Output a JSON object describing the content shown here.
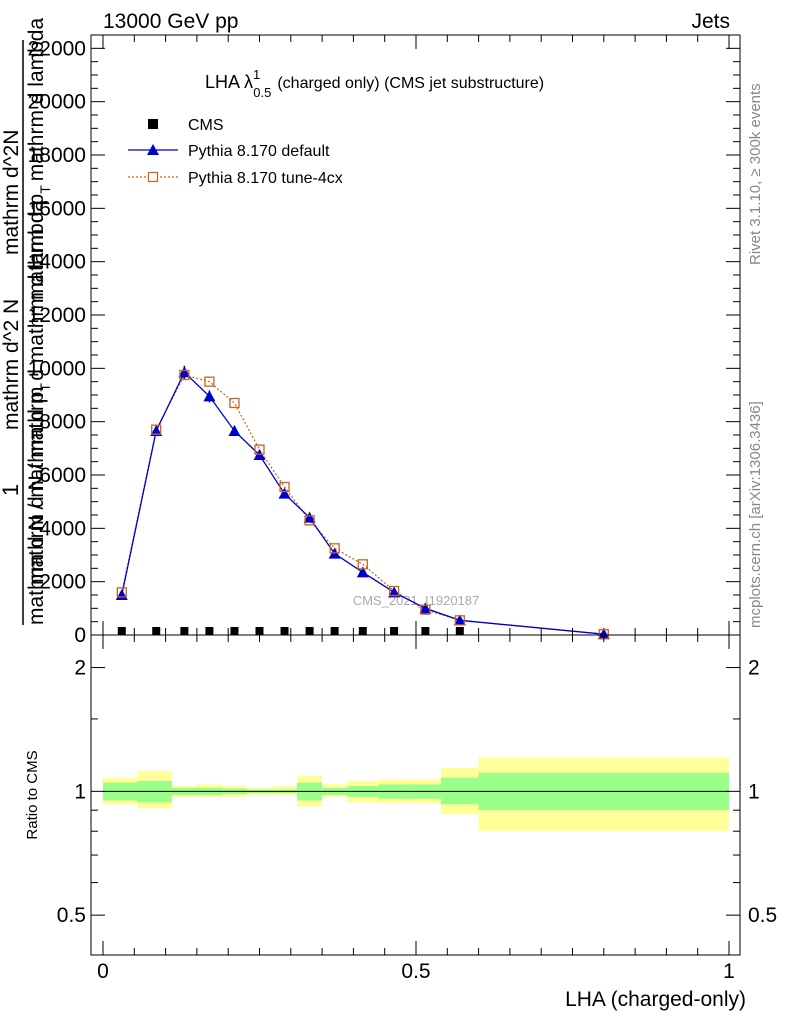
{
  "header": {
    "left": "13000 GeV pp",
    "right": "Jets"
  },
  "side": {
    "rivet": "Rivet 3.1.10, ≥ 300k events",
    "mcplots": "mcplots.cern.ch [arXiv:1306.3436]"
  },
  "colors": {
    "pythia_default": "#0000cc",
    "pythia_tune": "#c8641e",
    "band_inner": "#99ff88",
    "band_outer": "#ffff99",
    "cms": "#000000"
  },
  "chart_data": [
    {
      "type": "line",
      "panel": "main",
      "title": "LHA λ",
      "title_sup": "1",
      "title_sub": "0.5",
      "title_rest": "(charged only) (CMS jet substructure)",
      "ylabel": "1 / mathrm d N / mathrm d p_T mathrm d lambda ... mathrm d^2N / mathrm d p_T mathrm d lambda",
      "ylabel_parts": {
        "numerator_1": "1",
        "denominator_1": "mathrm d N / mathrm d p",
        "denominator_1_sub": "T",
        "numerator_2": "mathrm d^2N",
        "denominator_2": "mathrm d p",
        "denominator_2_sub": "T",
        "denominator_2_rest": "mathrm d lambda",
        "overlap_1": "mathrm d N / mathrm d mathrm d lambda",
        "overlap_2": "mathrm d^2 N"
      },
      "xlim": [
        0,
        1
      ],
      "ylim": [
        0,
        22500
      ],
      "yticks": [
        0,
        2000,
        4000,
        6000,
        8000,
        10000,
        12000,
        14000,
        16000,
        18000,
        20000,
        22000
      ],
      "ytick_labels": [
        "0",
        "2000",
        "4000",
        "6000",
        "8000",
        "10000",
        "12000",
        "14000",
        "16000",
        "18000",
        "20000",
        "22000"
      ],
      "watermark": "CMS_2021_I1920187",
      "legend": [
        {
          "name": "CMS",
          "marker": "square"
        },
        {
          "name": "Pythia 8.170 default",
          "marker": "triangle"
        },
        {
          "name": "Pythia 8.170 tune-4cx",
          "marker": "open-square"
        }
      ],
      "x": [
        0.03,
        0.085,
        0.13,
        0.17,
        0.21,
        0.25,
        0.29,
        0.33,
        0.37,
        0.415,
        0.465,
        0.515,
        0.57,
        0.8
      ],
      "series": [
        {
          "name": "CMS",
          "values": [
            75,
            75,
            75,
            75,
            75,
            75,
            75,
            75,
            75,
            75,
            75,
            75,
            75,
            null
          ]
        },
        {
          "name": "Pythia 8.170 default",
          "values": [
            1500,
            7650,
            9850,
            8950,
            7650,
            6750,
            5300,
            4400,
            3050,
            2350,
            1600,
            1000,
            550,
            30
          ]
        },
        {
          "name": "Pythia 8.170 tune-4cx",
          "values": [
            1600,
            7700,
            9750,
            9500,
            8700,
            6950,
            5550,
            4300,
            3250,
            2650,
            1650,
            950,
            550,
            30
          ]
        }
      ]
    },
    {
      "type": "area",
      "panel": "ratio",
      "ylabel": "Ratio to CMS",
      "xlabel": "LHA (charged-only)",
      "xlim": [
        0,
        1
      ],
      "ylim": [
        0.4,
        2.4
      ],
      "yscale": "log",
      "yticks": [
        0.5,
        1,
        2
      ],
      "ytick_labels": [
        "0.5",
        "1",
        "2"
      ],
      "xticks": [
        0,
        0.5,
        1
      ],
      "xtick_labels": [
        "0",
        "0.5",
        "1"
      ],
      "reference": 1,
      "bins": [
        {
          "xlo": 0.0,
          "xhi": 0.055,
          "inner": [
            0.95,
            1.05
          ],
          "outer": [
            0.93,
            1.08
          ]
        },
        {
          "xlo": 0.055,
          "xhi": 0.11,
          "inner": [
            0.94,
            1.06
          ],
          "outer": [
            0.91,
            1.12
          ]
        },
        {
          "xlo": 0.11,
          "xhi": 0.15,
          "inner": [
            0.98,
            1.02
          ],
          "outer": [
            0.97,
            1.03
          ]
        },
        {
          "xlo": 0.15,
          "xhi": 0.19,
          "inner": [
            0.98,
            1.02
          ],
          "outer": [
            0.97,
            1.04
          ]
        },
        {
          "xlo": 0.19,
          "xhi": 0.23,
          "inner": [
            0.985,
            1.015
          ],
          "outer": [
            0.97,
            1.03
          ]
        },
        {
          "xlo": 0.23,
          "xhi": 0.27,
          "inner": [
            0.99,
            1.01
          ],
          "outer": [
            0.98,
            1.02
          ]
        },
        {
          "xlo": 0.27,
          "xhi": 0.31,
          "inner": [
            0.99,
            1.01
          ],
          "outer": [
            0.98,
            1.03
          ]
        },
        {
          "xlo": 0.31,
          "xhi": 0.35,
          "inner": [
            0.95,
            1.05
          ],
          "outer": [
            0.92,
            1.09
          ]
        },
        {
          "xlo": 0.35,
          "xhi": 0.39,
          "inner": [
            0.98,
            1.02
          ],
          "outer": [
            0.97,
            1.04
          ]
        },
        {
          "xlo": 0.39,
          "xhi": 0.44,
          "inner": [
            0.97,
            1.03
          ],
          "outer": [
            0.94,
            1.06
          ]
        },
        {
          "xlo": 0.44,
          "xhi": 0.49,
          "inner": [
            0.96,
            1.04
          ],
          "outer": [
            0.935,
            1.07
          ]
        },
        {
          "xlo": 0.49,
          "xhi": 0.54,
          "inner": [
            0.96,
            1.04
          ],
          "outer": [
            0.935,
            1.07
          ]
        },
        {
          "xlo": 0.54,
          "xhi": 0.6,
          "inner": [
            0.93,
            1.08
          ],
          "outer": [
            0.88,
            1.14
          ]
        },
        {
          "xlo": 0.6,
          "xhi": 1.0,
          "inner": [
            0.9,
            1.11
          ],
          "outer": [
            0.8,
            1.21
          ]
        }
      ]
    }
  ]
}
